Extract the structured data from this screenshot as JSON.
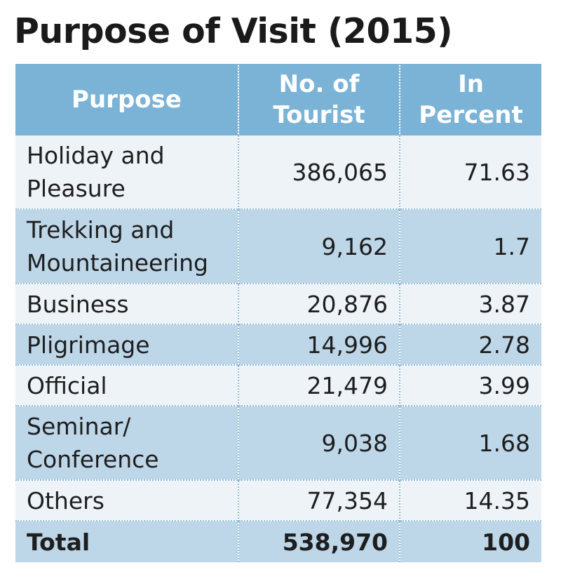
{
  "title": "Purpose of Visit (2015)",
  "table": {
    "headers": {
      "purpose": "Purpose",
      "tourists_line1": "No. of",
      "tourists_line2": "Tourist",
      "percent_line1": "In",
      "percent_line2": "Percent"
    },
    "rows": [
      {
        "purpose_line1": "Holiday and",
        "purpose_line2": "Pleasure",
        "tourists": "386,065",
        "percent": "71.63"
      },
      {
        "purpose_line1": "Trekking and",
        "purpose_line2": "Mountaineering",
        "tourists": "9,162",
        "percent": "1.7"
      },
      {
        "purpose_line1": "Business",
        "purpose_line2": "",
        "tourists": "20,876",
        "percent": "3.87"
      },
      {
        "purpose_line1": "Pligrimage",
        "purpose_line2": "",
        "tourists": "14,996",
        "percent": "2.78"
      },
      {
        "purpose_line1": "Official",
        "purpose_line2": "",
        "tourists": "21,479",
        "percent": "3.99"
      },
      {
        "purpose_line1": "Seminar/",
        "purpose_line2": "Conference",
        "tourists": "9,038",
        "percent": "1.68"
      },
      {
        "purpose_line1": "Others",
        "purpose_line2": "",
        "tourists": "77,354",
        "percent": "14.35"
      }
    ],
    "total": {
      "label": "Total",
      "tourists": "538,970",
      "percent": "100"
    }
  },
  "colors": {
    "header_bg": "#7ab3d6",
    "row_light": "#eef3f8",
    "row_dark": "#bdd6e8",
    "divider": "#8fbcd8"
  },
  "chart_data": {
    "type": "table",
    "title": "Purpose of Visit (2015)",
    "columns": [
      "Purpose",
      "No. of Tourist",
      "In Percent"
    ],
    "rows": [
      [
        "Holiday and Pleasure",
        386065,
        71.63
      ],
      [
        "Trekking and Mountaineering",
        9162,
        1.7
      ],
      [
        "Business",
        20876,
        3.87
      ],
      [
        "Pligrimage",
        14996,
        2.78
      ],
      [
        "Official",
        21479,
        3.99
      ],
      [
        "Seminar/ Conference",
        9038,
        1.68
      ],
      [
        "Others",
        77354,
        14.35
      ]
    ],
    "total": [
      "Total",
      538970,
      100
    ]
  }
}
